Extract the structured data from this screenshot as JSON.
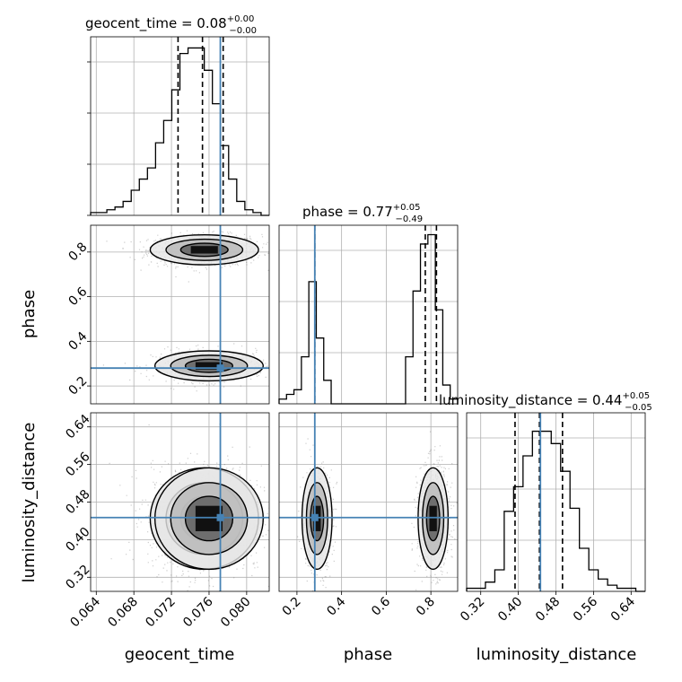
{
  "parameters": [
    "geocent_time",
    "phase",
    "luminosity_distance"
  ],
  "titles": [
    {
      "param": "geocent_time",
      "text": "geocent_time = 0.08",
      "plus": "+0.00",
      "minus": "−0.00"
    },
    {
      "param": "phase",
      "text": "phase = 0.77",
      "plus": "+0.05",
      "minus": "−0.49"
    },
    {
      "param": "luminosity_distance",
      "text": "luminosity_distance = 0.44",
      "plus": "+0.05",
      "minus": "−0.05"
    }
  ],
  "axis_labels": {
    "bottom": [
      "geocent_time",
      "phase",
      "luminosity_distance"
    ],
    "left": [
      "phase",
      "luminosity_distance"
    ]
  },
  "colors": {
    "truth": "#4682b4",
    "hist": "#000000",
    "grid": "#b0b0b0",
    "scatter": "#6e6e6e"
  },
  "chart_data": {
    "type": "corner",
    "truths": {
      "geocent_time": 0.0772,
      "phase": 0.28,
      "luminosity_distance": 0.447
    },
    "ranges": {
      "geocent_time": [
        0.0634,
        0.0824
      ],
      "phase": [
        0.12,
        0.92
      ],
      "luminosity_distance": [
        0.29,
        0.67
      ]
    },
    "ticks": {
      "geocent_time": [
        "0.064",
        "0.068",
        "0.072",
        "0.076",
        "0.080"
      ],
      "phase": [
        "0.2",
        "0.4",
        "0.6",
        "0.8"
      ],
      "luminosity_distance": [
        "0.32",
        "0.40",
        "0.48",
        "0.56",
        "0.64"
      ]
    },
    "quantiles": {
      "geocent_time": [
        0.0727,
        0.0753,
        0.0775
      ],
      "phase": [
        0.28,
        0.775,
        0.825
      ],
      "luminosity_distance": [
        0.393,
        0.445,
        0.494
      ]
    },
    "histograms": {
      "geocent_time": [
        1,
        1,
        2,
        3,
        5,
        9,
        13,
        17,
        26,
        34,
        45,
        58,
        60,
        60,
        52,
        40,
        25,
        13,
        5,
        2,
        1,
        0
      ],
      "phase": [
        1,
        2,
        3,
        10,
        26,
        14,
        5,
        0,
        0,
        0,
        0,
        0,
        0,
        0,
        0,
        0,
        0,
        10,
        24,
        34,
        36,
        20,
        4,
        1
      ],
      "luminosity_distance": [
        1,
        1,
        3,
        7,
        26,
        34,
        44,
        52,
        52,
        48,
        39,
        27,
        14,
        7,
        4,
        2,
        1,
        1,
        0
      ]
    },
    "hist_max": {
      "geocent_time": 64,
      "phase": 38,
      "luminosity_distance": 58
    },
    "modes": [
      {
        "geocent_time": 0.0755,
        "phase": 0.81,
        "luminosity_distance": 0.445,
        "w": 0.62
      },
      {
        "geocent_time": 0.076,
        "phase": 0.29,
        "luminosity_distance": 0.445,
        "w": 0.38
      }
    ],
    "contour_levels": [
      0.39,
      0.86,
      0.99
    ],
    "grid": true
  }
}
